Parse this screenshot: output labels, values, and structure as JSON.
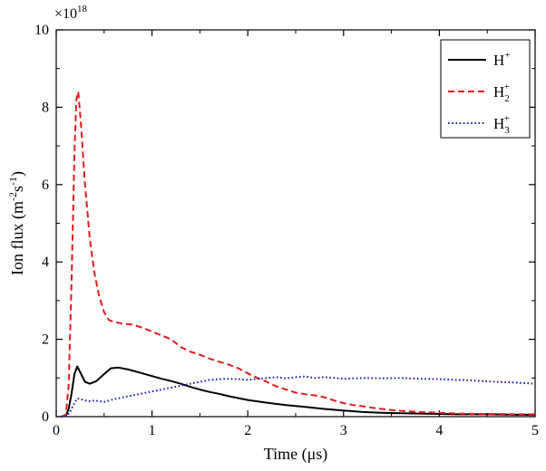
{
  "chart_data": {
    "type": "line",
    "xlabel": "Time (μs)",
    "ylabel": {
      "base": "Ion flux (m",
      "exp1": "-2",
      "mid": "s",
      "exp2": "-1",
      "end": ")"
    },
    "multiplier": {
      "base": "×10",
      "exp": "18"
    },
    "xlim": [
      0,
      5
    ],
    "ylim": [
      0,
      10
    ],
    "xticks": [
      0,
      1,
      2,
      3,
      4,
      5
    ],
    "yticks": [
      0,
      2,
      4,
      6,
      8,
      10
    ],
    "grid": false,
    "legend_position": "top-right",
    "series": [
      {
        "name": "H+",
        "legend": {
          "base": "H",
          "sup": "+",
          "sub": ""
        },
        "color": "#000000",
        "style": "solid",
        "points": [
          [
            0.05,
            0
          ],
          [
            0.1,
            0.02
          ],
          [
            0.13,
            0.2
          ],
          [
            0.16,
            0.6
          ],
          [
            0.19,
            1.1
          ],
          [
            0.22,
            1.3
          ],
          [
            0.25,
            1.15
          ],
          [
            0.3,
            0.9
          ],
          [
            0.35,
            0.85
          ],
          [
            0.42,
            0.92
          ],
          [
            0.5,
            1.1
          ],
          [
            0.57,
            1.25
          ],
          [
            0.65,
            1.27
          ],
          [
            0.75,
            1.22
          ],
          [
            0.9,
            1.12
          ],
          [
            1.0,
            1.05
          ],
          [
            1.1,
            0.98
          ],
          [
            1.2,
            0.92
          ],
          [
            1.3,
            0.85
          ],
          [
            1.4,
            0.77
          ],
          [
            1.5,
            0.7
          ],
          [
            1.6,
            0.64
          ],
          [
            1.7,
            0.59
          ],
          [
            1.8,
            0.53
          ],
          [
            1.9,
            0.48
          ],
          [
            2.0,
            0.43
          ],
          [
            2.2,
            0.36
          ],
          [
            2.4,
            0.3
          ],
          [
            2.6,
            0.25
          ],
          [
            2.8,
            0.2
          ],
          [
            3.0,
            0.16
          ],
          [
            3.2,
            0.12
          ],
          [
            3.4,
            0.1
          ],
          [
            3.6,
            0.09
          ],
          [
            3.8,
            0.08
          ],
          [
            4.0,
            0.07
          ],
          [
            4.2,
            0.06
          ],
          [
            4.5,
            0.06
          ],
          [
            4.8,
            0.05
          ],
          [
            5.0,
            0.05
          ]
        ]
      },
      {
        "name": "H2+",
        "legend": {
          "base": "H",
          "sup": "+",
          "sub": "2"
        },
        "color": "#e31a1c",
        "style": "dashed",
        "points": [
          [
            0.05,
            0
          ],
          [
            0.1,
            0.05
          ],
          [
            0.13,
            0.8
          ],
          [
            0.16,
            3.5
          ],
          [
            0.19,
            6.8
          ],
          [
            0.21,
            8.2
          ],
          [
            0.23,
            8.4
          ],
          [
            0.26,
            7.5
          ],
          [
            0.3,
            6.0
          ],
          [
            0.35,
            4.6
          ],
          [
            0.4,
            3.7
          ],
          [
            0.45,
            3.1
          ],
          [
            0.5,
            2.7
          ],
          [
            0.55,
            2.5
          ],
          [
            0.6,
            2.45
          ],
          [
            0.7,
            2.4
          ],
          [
            0.8,
            2.38
          ],
          [
            0.9,
            2.3
          ],
          [
            1.0,
            2.2
          ],
          [
            1.1,
            2.1
          ],
          [
            1.2,
            2.0
          ],
          [
            1.3,
            1.8
          ],
          [
            1.4,
            1.68
          ],
          [
            1.5,
            1.6
          ],
          [
            1.6,
            1.5
          ],
          [
            1.7,
            1.42
          ],
          [
            1.8,
            1.35
          ],
          [
            1.9,
            1.25
          ],
          [
            2.0,
            1.12
          ],
          [
            2.1,
            1.0
          ],
          [
            2.2,
            0.9
          ],
          [
            2.3,
            0.78
          ],
          [
            2.4,
            0.7
          ],
          [
            2.5,
            0.62
          ],
          [
            2.6,
            0.58
          ],
          [
            2.7,
            0.55
          ],
          [
            2.8,
            0.5
          ],
          [
            2.9,
            0.42
          ],
          [
            3.0,
            0.35
          ],
          [
            3.1,
            0.3
          ],
          [
            3.2,
            0.27
          ],
          [
            3.3,
            0.23
          ],
          [
            3.4,
            0.2
          ],
          [
            3.5,
            0.17
          ],
          [
            3.6,
            0.15
          ],
          [
            3.8,
            0.12
          ],
          [
            4.0,
            0.1
          ],
          [
            4.2,
            0.08
          ],
          [
            4.4,
            0.07
          ],
          [
            4.6,
            0.07
          ],
          [
            4.8,
            0.06
          ],
          [
            5.0,
            0.06
          ]
        ]
      },
      {
        "name": "H3+",
        "legend": {
          "base": "H",
          "sup": "+",
          "sub": "3"
        },
        "color": "#1a1ab0",
        "style": "dotted",
        "points": [
          [
            0.05,
            0
          ],
          [
            0.1,
            0.01
          ],
          [
            0.14,
            0.1
          ],
          [
            0.18,
            0.3
          ],
          [
            0.22,
            0.47
          ],
          [
            0.26,
            0.45
          ],
          [
            0.3,
            0.42
          ],
          [
            0.35,
            0.4
          ],
          [
            0.4,
            0.42
          ],
          [
            0.5,
            0.38
          ],
          [
            0.6,
            0.45
          ],
          [
            0.7,
            0.5
          ],
          [
            0.8,
            0.55
          ],
          [
            0.9,
            0.6
          ],
          [
            1.0,
            0.65
          ],
          [
            1.1,
            0.7
          ],
          [
            1.2,
            0.75
          ],
          [
            1.3,
            0.8
          ],
          [
            1.4,
            0.85
          ],
          [
            1.5,
            0.9
          ],
          [
            1.6,
            0.95
          ],
          [
            1.7,
            0.97
          ],
          [
            1.8,
            0.98
          ],
          [
            1.9,
            0.97
          ],
          [
            2.0,
            0.95
          ],
          [
            2.1,
            0.98
          ],
          [
            2.2,
            1.0
          ],
          [
            2.3,
            1.02
          ],
          [
            2.4,
            0.99
          ],
          [
            2.5,
            1.02
          ],
          [
            2.6,
            1.04
          ],
          [
            2.7,
            1.0
          ],
          [
            2.8,
            1.02
          ],
          [
            2.9,
            1.0
          ],
          [
            3.0,
            0.98
          ],
          [
            3.2,
            1.0
          ],
          [
            3.4,
            0.99
          ],
          [
            3.6,
            1.0
          ],
          [
            3.8,
            0.98
          ],
          [
            4.0,
            0.97
          ],
          [
            4.2,
            0.95
          ],
          [
            4.4,
            0.93
          ],
          [
            4.6,
            0.9
          ],
          [
            4.8,
            0.88
          ],
          [
            5.0,
            0.85
          ]
        ]
      }
    ]
  }
}
